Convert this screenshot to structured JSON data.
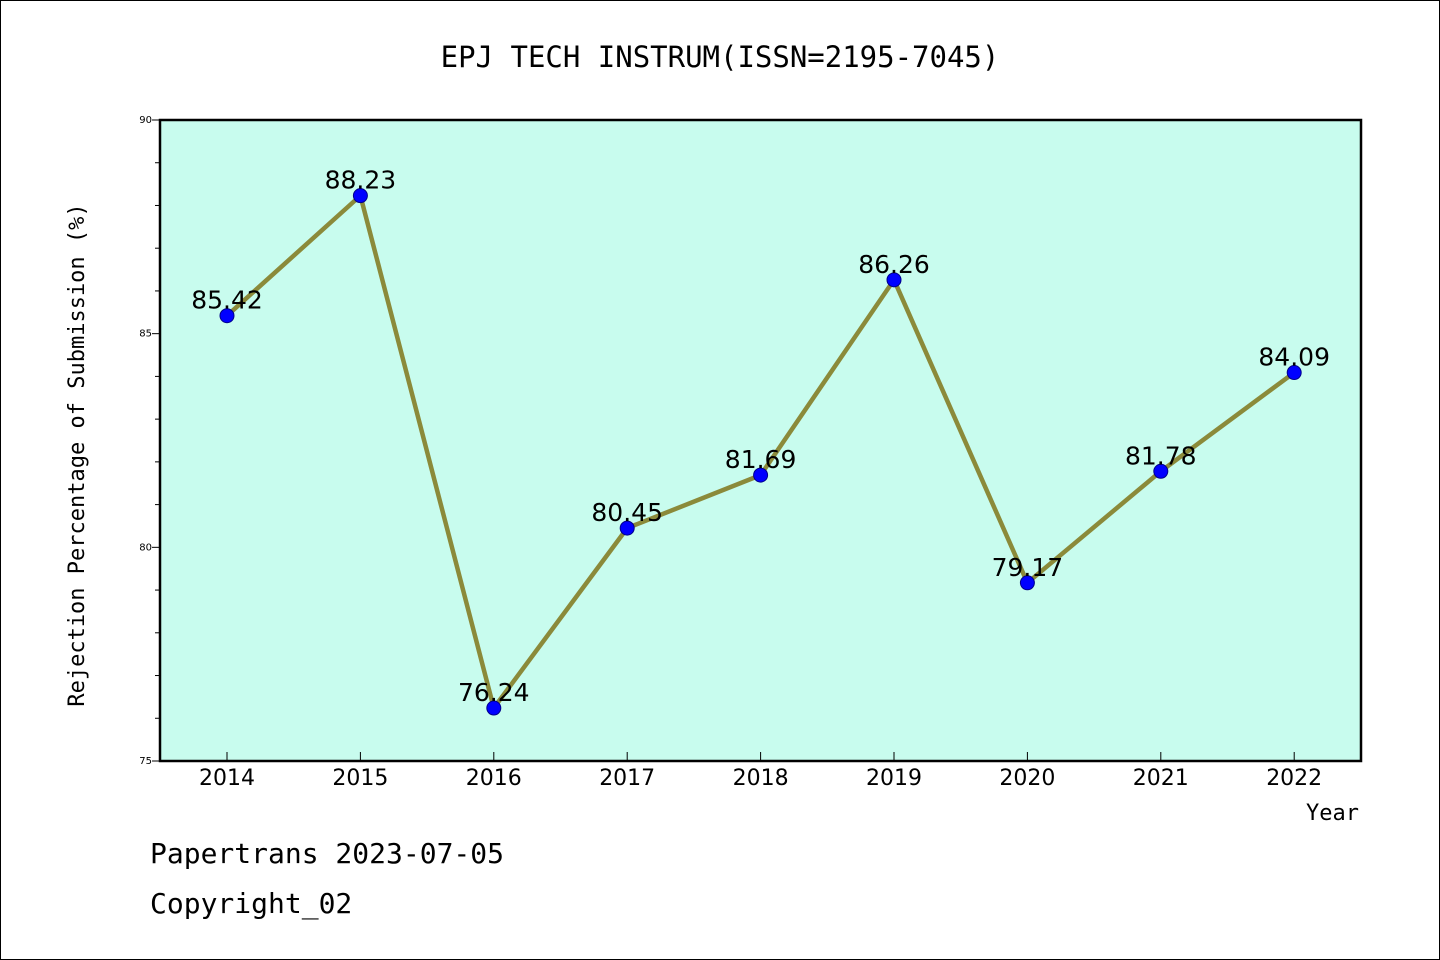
{
  "chart_data": {
    "type": "line",
    "title": "EPJ TECH INSTRUM(ISSN=2195-7045)",
    "xlabel": "Year",
    "ylabel": "Rejection Percentage of Submission (%)",
    "categories": [
      "2014",
      "2015",
      "2016",
      "2017",
      "2018",
      "2019",
      "2020",
      "2021",
      "2022"
    ],
    "values": [
      85.42,
      88.23,
      76.24,
      80.45,
      81.69,
      86.26,
      79.17,
      81.78,
      84.09
    ],
    "value_labels": [
      "85.42",
      "88.23",
      "76.24",
      "80.45",
      "81.69",
      "86.26",
      "79.17",
      "81.78",
      "84.09"
    ],
    "ylim": [
      75,
      90
    ],
    "yticks": [
      75,
      80,
      85,
      90
    ],
    "ytick_labels": [
      "75",
      "80",
      "85",
      "90"
    ],
    "grid": false,
    "colors": {
      "plot_background": "#c8fcee",
      "line": "#8b8a3a",
      "marker": "#0000ff"
    }
  },
  "footer": {
    "line1": "Papertrans 2023-07-05",
    "line2": "Copyright_02"
  }
}
